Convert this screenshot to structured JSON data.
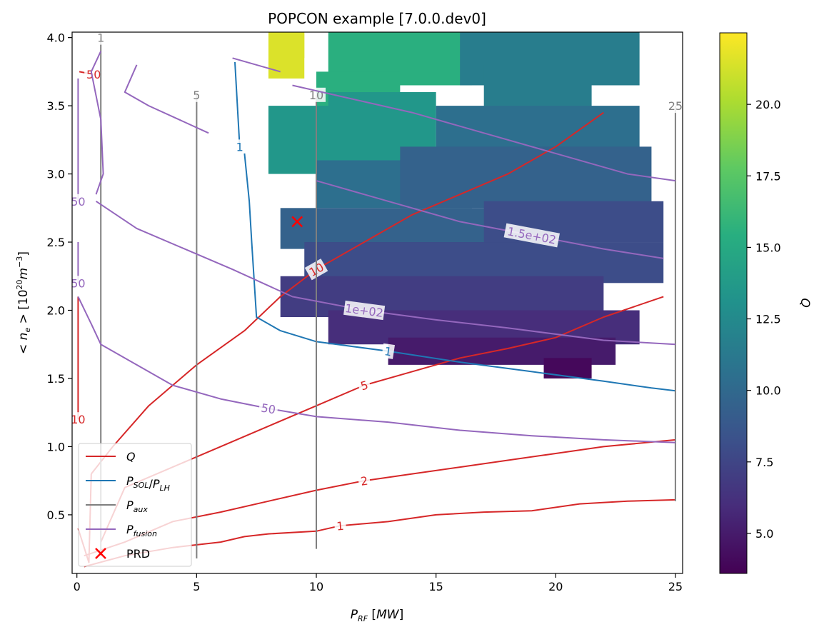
{
  "chart_data": {
    "type": "heatmap",
    "title": "POPCON example [7.0.0.dev0]",
    "xlabel": "P_RF [MW]",
    "ylabel": "<n_e> [10^20 m^-3]",
    "xlim": [
      -0.2,
      25.3
    ],
    "ylim": [
      0.07,
      4.04
    ],
    "x_ticks": [
      "0",
      "5",
      "10",
      "15",
      "20",
      "25"
    ],
    "y_ticks": [
      "0.5",
      "1.0",
      "1.5",
      "2.0",
      "2.5",
      "3.0",
      "3.5",
      "4.0"
    ],
    "colorbar": {
      "label": "Q",
      "colormap": "viridis",
      "range": [
        3.6,
        22.5
      ],
      "ticks": [
        "5.0",
        "7.5",
        "10.0",
        "12.5",
        "15.0",
        "17.5",
        "20.0"
      ]
    },
    "heatmap_bands": [
      {
        "q": 21.5,
        "rows": [
          {
            "y": [
              3.7,
              4.04
            ],
            "x": [
              8.0,
              9.5
            ]
          },
          {
            "y": [
              3.85,
              4.04
            ],
            "x": [
              8.3,
              9.5
            ]
          }
        ]
      },
      {
        "q": 15.5,
        "rows": [
          {
            "y": [
              3.65,
              4.04
            ],
            "x": [
              10.5,
              16.5
            ]
          },
          {
            "y": [
              3.4,
              3.75
            ],
            "x": [
              10.0,
              13.5
            ]
          }
        ]
      },
      {
        "q": 13.5,
        "rows": [
          {
            "y": [
              3.0,
              3.5
            ],
            "x": [
              8.0,
              14.0
            ]
          },
          {
            "y": [
              3.1,
              3.6
            ],
            "x": [
              10.5,
              15.0
            ]
          }
        ]
      },
      {
        "q": 11.5,
        "rows": [
          {
            "y": [
              3.65,
              4.04
            ],
            "x": [
              16.0,
              23.5
            ]
          },
          {
            "y": [
              3.3,
              3.8
            ],
            "x": [
              17.0,
              21.5
            ]
          }
        ]
      },
      {
        "q": 10.5,
        "rows": [
          {
            "y": [
              2.75,
              3.1
            ],
            "x": [
              10.0,
              16.5
            ]
          },
          {
            "y": [
              3.1,
              3.5
            ],
            "x": [
              15.0,
              23.5
            ]
          }
        ]
      },
      {
        "q": 9.5,
        "rows": [
          {
            "y": [
              2.45,
              2.75
            ],
            "x": [
              8.5,
              20.0
            ]
          },
          {
            "y": [
              2.75,
              3.2
            ],
            "x": [
              13.5,
              24.0
            ]
          }
        ]
      },
      {
        "q": 8.0,
        "rows": [
          {
            "y": [
              2.2,
              2.5
            ],
            "x": [
              9.5,
              24.5
            ]
          },
          {
            "y": [
              2.5,
              2.8
            ],
            "x": [
              17.0,
              24.5
            ]
          }
        ]
      },
      {
        "q": 7.0,
        "rows": [
          {
            "y": [
              1.95,
              2.25
            ],
            "x": [
              8.5,
              22.0
            ]
          }
        ]
      },
      {
        "q": 6.0,
        "rows": [
          {
            "y": [
              1.75,
              2.0
            ],
            "x": [
              10.5,
              23.5
            ]
          }
        ]
      },
      {
        "q": 5.0,
        "rows": [
          {
            "y": [
              1.6,
              1.8
            ],
            "x": [
              13.0,
              22.5
            ]
          }
        ]
      },
      {
        "q": 4.0,
        "rows": [
          {
            "y": [
              1.5,
              1.65
            ],
            "x": [
              19.5,
              21.5
            ]
          }
        ]
      }
    ],
    "contours": [
      {
        "group": "Q",
        "color": "#d62728",
        "label": "10",
        "points": [
          [
            0.6,
            0.8
          ],
          [
            1.5,
            1.0
          ],
          [
            3.0,
            1.3
          ],
          [
            5.0,
            1.6
          ],
          [
            7.0,
            1.85
          ],
          [
            8.5,
            2.1
          ],
          [
            10.0,
            2.3
          ],
          [
            12.0,
            2.5
          ],
          [
            14.0,
            2.7
          ],
          [
            16.0,
            2.85
          ],
          [
            18.0,
            3.0
          ],
          [
            20.0,
            3.2
          ],
          [
            22.0,
            3.45
          ]
        ]
      },
      {
        "group": "Q",
        "color": "#d62728",
        "label": "5",
        "points": [
          [
            1.0,
            0.3
          ],
          [
            2.0,
            0.7
          ],
          [
            4.0,
            0.85
          ],
          [
            6.0,
            1.0
          ],
          [
            8.0,
            1.15
          ],
          [
            10.0,
            1.3
          ],
          [
            12.0,
            1.45
          ],
          [
            14.0,
            1.55
          ],
          [
            16.0,
            1.65
          ],
          [
            18.0,
            1.72
          ],
          [
            20.0,
            1.8
          ],
          [
            22.0,
            1.95
          ],
          [
            24.5,
            2.1
          ]
        ]
      },
      {
        "group": "Q",
        "color": "#d62728",
        "label": "2",
        "points": [
          [
            0.3,
            0.2
          ],
          [
            2.0,
            0.3
          ],
          [
            4.0,
            0.45
          ],
          [
            6.0,
            0.52
          ],
          [
            8.0,
            0.6
          ],
          [
            10.0,
            0.68
          ],
          [
            12.0,
            0.75
          ],
          [
            14.0,
            0.8
          ],
          [
            16.0,
            0.85
          ],
          [
            18.0,
            0.9
          ],
          [
            20.0,
            0.95
          ],
          [
            22.0,
            1.0
          ],
          [
            25.0,
            1.05
          ]
        ]
      },
      {
        "group": "Q",
        "color": "#d62728",
        "label": "1",
        "points": [
          [
            0.3,
            0.12
          ],
          [
            2.0,
            0.2
          ],
          [
            4.0,
            0.26
          ],
          [
            6.0,
            0.3
          ],
          [
            7.0,
            0.34
          ],
          [
            8.0,
            0.36
          ],
          [
            10.0,
            0.38
          ],
          [
            11.0,
            0.42
          ],
          [
            13.0,
            0.45
          ],
          [
            15.0,
            0.5
          ],
          [
            17.0,
            0.52
          ],
          [
            19.0,
            0.53
          ],
          [
            21.0,
            0.58
          ],
          [
            23.0,
            0.6
          ],
          [
            25.0,
            0.61
          ]
        ]
      },
      {
        "group": "Q",
        "color": "#d62728",
        "label": "50",
        "points": [
          [
            0.1,
            3.75
          ],
          [
            0.7,
            3.73
          ]
        ]
      },
      {
        "group": "Q",
        "color": "#d62728",
        "label": "10",
        "points": [
          [
            0.05,
            2.1
          ],
          [
            0.05,
            1.2
          ]
        ]
      },
      {
        "group": "Q",
        "color": "#d62728",
        "label": "",
        "points": [
          [
            0.05,
            0.4
          ],
          [
            0.5,
            0.15
          ],
          [
            0.6,
            0.8
          ]
        ]
      },
      {
        "group": "PSOL",
        "color": "#1f77b4",
        "label": "1",
        "points": [
          [
            6.6,
            3.82
          ],
          [
            6.8,
            3.2
          ]
        ]
      },
      {
        "group": "PSOL",
        "color": "#1f77b4",
        "label": "1",
        "points": [
          [
            7.0,
            3.15
          ],
          [
            7.2,
            2.8
          ],
          [
            7.3,
            2.5
          ],
          [
            7.5,
            1.95
          ],
          [
            8.5,
            1.85
          ],
          [
            10.0,
            1.77
          ],
          [
            13.0,
            1.7
          ],
          [
            16.0,
            1.62
          ],
          [
            19.0,
            1.55
          ],
          [
            22.0,
            1.48
          ],
          [
            24.0,
            1.43
          ],
          [
            25.0,
            1.41
          ]
        ]
      },
      {
        "group": "Paux",
        "color": "#7f7f7f",
        "label": "1",
        "points": [
          [
            1.0,
            0.2
          ],
          [
            1.0,
            4.0
          ]
        ]
      },
      {
        "group": "Paux",
        "color": "#7f7f7f",
        "label": "5",
        "points": [
          [
            5.0,
            0.18
          ],
          [
            5.0,
            3.58
          ]
        ]
      },
      {
        "group": "Paux",
        "color": "#7f7f7f",
        "label": "10",
        "points": [
          [
            10.0,
            0.25
          ],
          [
            10.0,
            3.58
          ]
        ]
      },
      {
        "group": "Paux",
        "color": "#7f7f7f",
        "label": "25",
        "points": [
          [
            25.0,
            0.6
          ],
          [
            25.0,
            3.5
          ]
        ]
      },
      {
        "group": "Pfusion",
        "color": "#9467bd",
        "label": "50",
        "points": [
          [
            0.05,
            2.1
          ],
          [
            0.6,
            1.9
          ],
          [
            1.0,
            1.75
          ],
          [
            2.5,
            1.6
          ],
          [
            4.0,
            1.45
          ],
          [
            6.0,
            1.35
          ],
          [
            8.0,
            1.28
          ],
          [
            10.0,
            1.22
          ],
          [
            13.0,
            1.18
          ],
          [
            16.0,
            1.12
          ],
          [
            19.0,
            1.08
          ],
          [
            22.0,
            1.05
          ],
          [
            25.0,
            1.03
          ]
        ]
      },
      {
        "group": "Pfusion",
        "color": "#9467bd",
        "label": "1e+02",
        "points": [
          [
            0.8,
            2.8
          ],
          [
            2.5,
            2.6
          ],
          [
            4.5,
            2.45
          ],
          [
            6.5,
            2.3
          ],
          [
            9.0,
            2.1
          ],
          [
            12.0,
            2.0
          ],
          [
            15.0,
            1.93
          ],
          [
            18.0,
            1.87
          ],
          [
            22.0,
            1.78
          ],
          [
            25.0,
            1.75
          ]
        ]
      },
      {
        "group": "Pfusion",
        "color": "#9467bd",
        "label": "1.5e+02",
        "points": [
          [
            10.0,
            2.95
          ],
          [
            13.0,
            2.8
          ],
          [
            16.0,
            2.65
          ],
          [
            19.0,
            2.55
          ],
          [
            22.0,
            2.45
          ],
          [
            24.5,
            2.38
          ]
        ]
      },
      {
        "group": "Pfusion",
        "color": "#9467bd",
        "label": "",
        "points": [
          [
            6.5,
            3.85
          ],
          [
            8.5,
            3.75
          ]
        ]
      },
      {
        "group": "Pfusion",
        "color": "#9467bd",
        "label": "",
        "points": [
          [
            9.0,
            3.65
          ],
          [
            11.5,
            3.55
          ],
          [
            14.0,
            3.45
          ],
          [
            17.0,
            3.3
          ],
          [
            20.0,
            3.15
          ],
          [
            23.0,
            3.0
          ],
          [
            25.0,
            2.95
          ]
        ]
      },
      {
        "group": "Pfusion",
        "color": "#9467bd",
        "label": "",
        "points": [
          [
            1.0,
            3.9
          ],
          [
            0.6,
            3.75
          ],
          [
            1.0,
            3.4
          ],
          [
            1.1,
            3.0
          ],
          [
            0.8,
            2.85
          ]
        ]
      },
      {
        "group": "Pfusion",
        "color": "#9467bd",
        "label": "50",
        "points": [
          [
            0.05,
            3.7
          ],
          [
            0.05,
            2.8
          ]
        ]
      },
      {
        "group": "Pfusion",
        "color": "#9467bd",
        "label": "50",
        "points": [
          [
            0.05,
            2.5
          ],
          [
            0.05,
            2.2
          ]
        ]
      },
      {
        "group": "Pfusion",
        "color": "#9467bd",
        "label": "",
        "points": [
          [
            2.5,
            3.8
          ],
          [
            2.0,
            3.6
          ],
          [
            3.0,
            3.5
          ],
          [
            5.5,
            3.3
          ]
        ]
      }
    ],
    "marker": {
      "label": "PRD",
      "x": 9.2,
      "y": 2.65,
      "color": "#ff0000"
    },
    "legend": {
      "placement": "lower-left",
      "entries": [
        {
          "label": "Q",
          "color": "#d62728",
          "kind": "line"
        },
        {
          "label": "P_SOL/P_LH",
          "color": "#1f77b4",
          "kind": "line"
        },
        {
          "label": "P_aux",
          "color": "#7f7f7f",
          "kind": "line"
        },
        {
          "label": "P_fusion",
          "color": "#9467bd",
          "kind": "line"
        },
        {
          "label": "PRD",
          "color": "#ff0000",
          "kind": "marker"
        }
      ]
    }
  }
}
